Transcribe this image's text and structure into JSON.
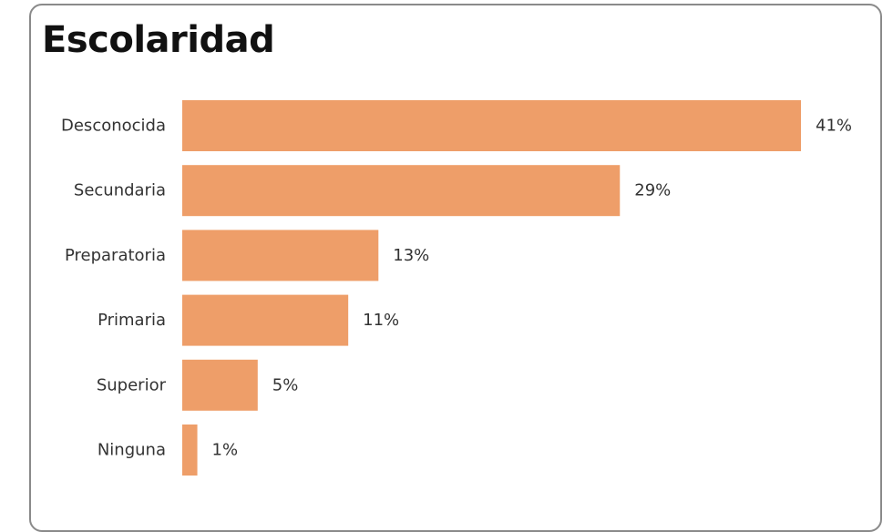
{
  "chart_data": {
    "type": "bar",
    "orientation": "horizontal",
    "title": "Escolaridad",
    "categories": [
      "Desconocida",
      "Secundaria",
      "Preparatoria",
      "Primaria",
      "Superior",
      "Ninguna"
    ],
    "values": [
      41,
      29,
      13,
      11,
      5,
      1
    ],
    "value_labels": [
      "41%",
      "29%",
      "13%",
      "11%",
      "5%",
      "1%"
    ],
    "unit": "%",
    "bar_color": "#EE9E69",
    "grid": false,
    "legend": "none"
  }
}
